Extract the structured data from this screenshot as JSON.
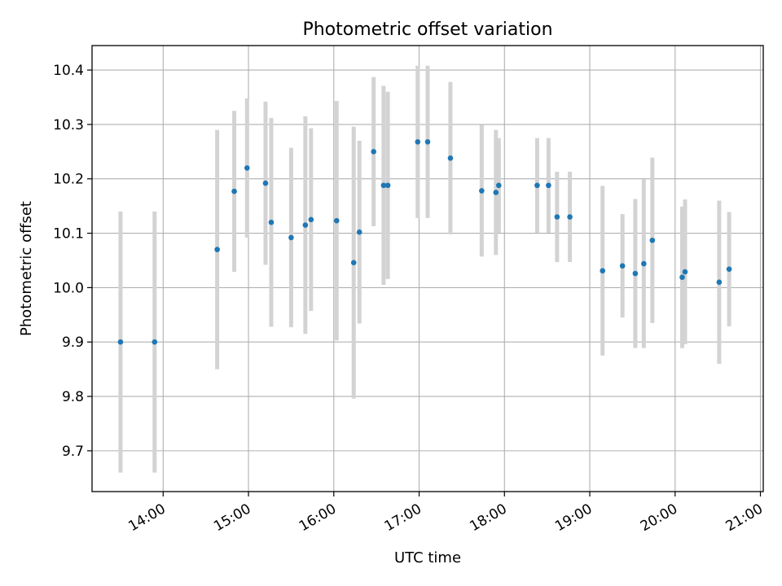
{
  "chart_data": {
    "type": "scatter",
    "title": "Photometric offset variation",
    "xlabel": "UTC time",
    "ylabel": "Photometric offset",
    "xlim": [
      "13:10",
      "21:02"
    ],
    "ylim": [
      9.625,
      10.445
    ],
    "x_ticks": [
      "14:00",
      "15:00",
      "16:00",
      "17:00",
      "18:00",
      "19:00",
      "20:00",
      "21:00"
    ],
    "y_ticks": [
      9.7,
      9.8,
      9.9,
      10.0,
      10.1,
      10.2,
      10.3,
      10.4
    ],
    "y_tick_labels": [
      "9.7",
      "9.8",
      "9.9",
      "10.0",
      "10.1",
      "10.2",
      "10.3",
      "10.4"
    ],
    "grid": true,
    "colors": {
      "point": "#1f77b4",
      "errorbar": "#d3d3d3",
      "grid": "#b0b0b0"
    },
    "series": [
      {
        "points": [
          {
            "x": "13:30",
            "y": 9.9,
            "err": 0.24
          },
          {
            "x": "13:54",
            "y": 9.9,
            "err": 0.24
          },
          {
            "x": "14:38",
            "y": 10.07,
            "err": 0.22
          },
          {
            "x": "14:50",
            "y": 10.177,
            "err": 0.148
          },
          {
            "x": "14:59",
            "y": 10.22,
            "err": 0.128
          },
          {
            "x": "15:12",
            "y": 10.192,
            "err": 0.15
          },
          {
            "x": "15:16",
            "y": 10.12,
            "err": 0.192
          },
          {
            "x": "15:30",
            "y": 10.092,
            "err": 0.165
          },
          {
            "x": "15:40",
            "y": 10.115,
            "err": 0.2
          },
          {
            "x": "15:44",
            "y": 10.125,
            "err": 0.168
          },
          {
            "x": "16:02",
            "y": 10.123,
            "err": 0.22
          },
          {
            "x": "16:14",
            "y": 10.046,
            "err": 0.25
          },
          {
            "x": "16:18",
            "y": 10.102,
            "err": 0.168
          },
          {
            "x": "16:28",
            "y": 10.25,
            "err": 0.137
          },
          {
            "x": "16:35",
            "y": 10.188,
            "err": 0.183
          },
          {
            "x": "16:38",
            "y": 10.188,
            "err": 0.172
          },
          {
            "x": "16:59",
            "y": 10.268,
            "err": 0.14
          },
          {
            "x": "17:06",
            "y": 10.268,
            "err": 0.14
          },
          {
            "x": "17:22",
            "y": 10.238,
            "err": 0.14
          },
          {
            "x": "17:44",
            "y": 10.178,
            "err": 0.121
          },
          {
            "x": "17:54",
            "y": 10.175,
            "err": 0.115
          },
          {
            "x": "17:56",
            "y": 10.188,
            "err": 0.087
          },
          {
            "x": "18:23",
            "y": 10.188,
            "err": 0.087
          },
          {
            "x": "18:31",
            "y": 10.188,
            "err": 0.087
          },
          {
            "x": "18:37",
            "y": 10.13,
            "err": 0.083
          },
          {
            "x": "18:46",
            "y": 10.13,
            "err": 0.083
          },
          {
            "x": "19:09",
            "y": 10.031,
            "err": 0.156
          },
          {
            "x": "19:23",
            "y": 10.04,
            "err": 0.095
          },
          {
            "x": "19:32",
            "y": 10.026,
            "err": 0.137
          },
          {
            "x": "19:38",
            "y": 10.044,
            "err": 0.155
          },
          {
            "x": "19:44",
            "y": 10.087,
            "err": 0.152
          },
          {
            "x": "20:05",
            "y": 10.019,
            "err": 0.13
          },
          {
            "x": "20:07",
            "y": 10.029,
            "err": 0.133
          },
          {
            "x": "20:31",
            "y": 10.01,
            "err": 0.15
          },
          {
            "x": "20:38",
            "y": 10.034,
            "err": 0.105
          }
        ]
      }
    ]
  }
}
